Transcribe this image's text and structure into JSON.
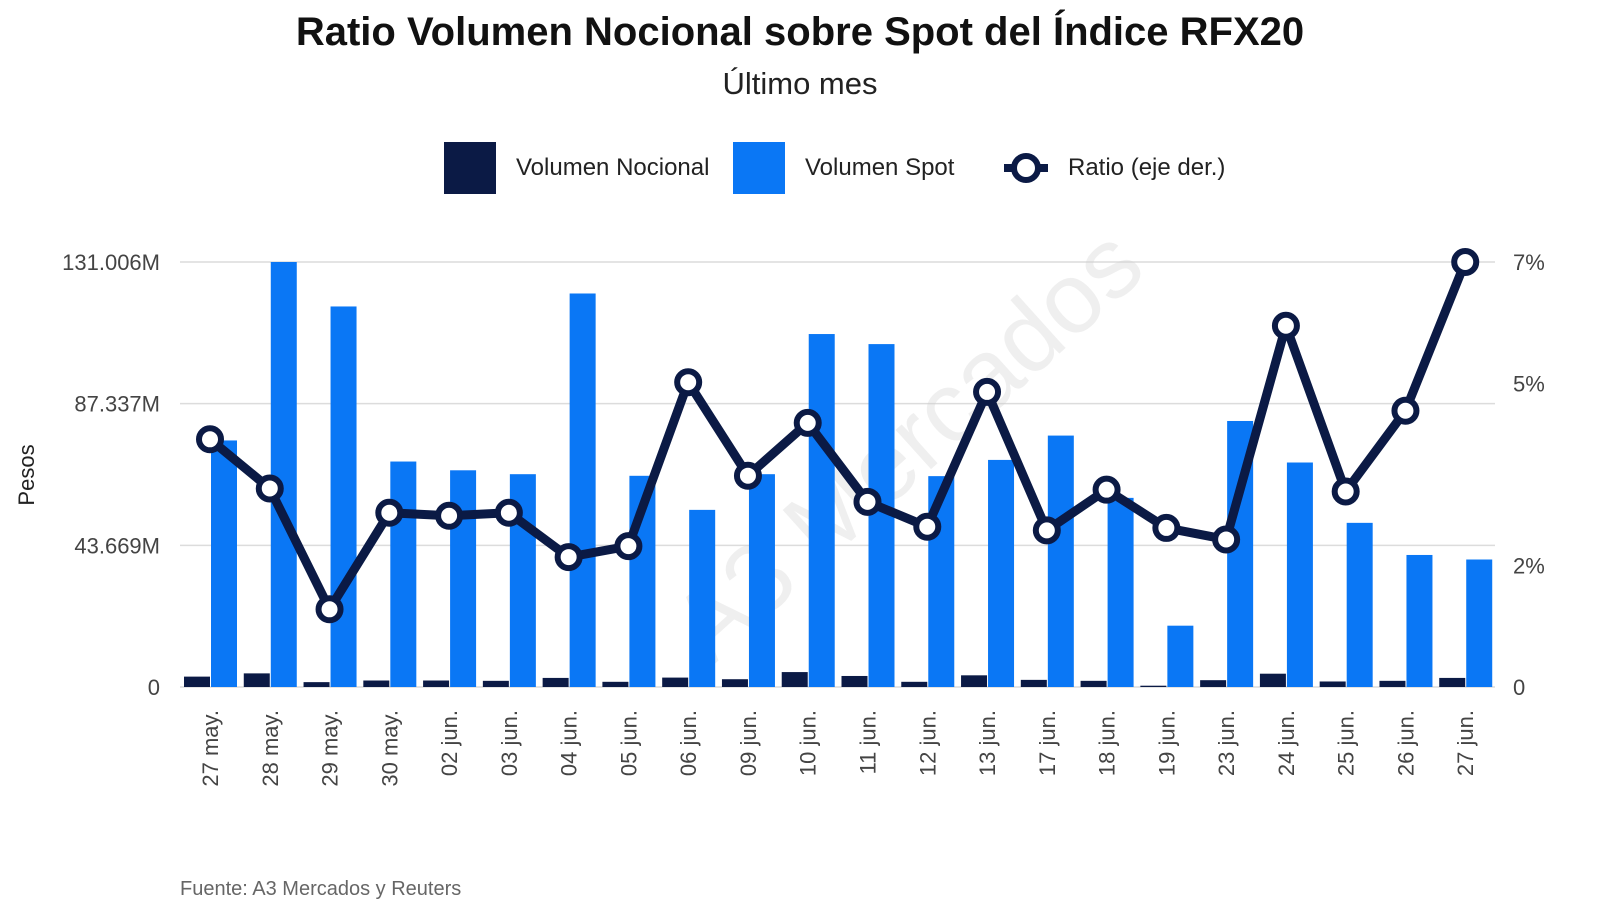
{
  "chart_data": {
    "type": "bar",
    "title": "Ratio Volumen Nocional sobre Spot del Índice RFX20",
    "subtitle": "Último mes",
    "ylabel": "Pesos",
    "source": "Fuente: A3 Mercados y Reuters",
    "watermark": "A3 Mercados",
    "categories": [
      "27 may.",
      "28 may.",
      "29 may.",
      "30 may.",
      "02 jun.",
      "03 jun.",
      "04 jun.",
      "05 jun.",
      "06 jun.",
      "09 jun.",
      "10 jun.",
      "11 jun.",
      "12 jun.",
      "13 jun.",
      "17 jun.",
      "18 jun.",
      "19 jun.",
      "23 jun.",
      "24 jun.",
      "25 jun.",
      "26 jun.",
      "27 jun."
    ],
    "y_left": {
      "ticks": [
        0,
        43669,
        87337,
        131006
      ],
      "tick_labels": [
        "0",
        "43.669M",
        "87.337M",
        "131.006M"
      ],
      "unit": "M",
      "range": [
        0,
        131006
      ]
    },
    "y_right": {
      "ticks": [
        0,
        2,
        5,
        7
      ],
      "tick_labels": [
        "0",
        "2%",
        "5%",
        "7%"
      ],
      "unit": "%",
      "range": [
        0,
        7
      ]
    },
    "series": [
      {
        "name": "Volumen Nocional",
        "type": "bar",
        "axis": "left",
        "color": "#0b1a45",
        "values": [
          3200,
          4200,
          1500,
          2000,
          2000,
          1900,
          2800,
          1600,
          2900,
          2400,
          4600,
          3400,
          1600,
          3600,
          2200,
          1900,
          400,
          2100,
          4100,
          1700,
          1900,
          2800
        ]
      },
      {
        "name": "Volumen Spot",
        "type": "bar",
        "axis": "left",
        "color": "#0a77f5",
        "values": [
          76000,
          131006,
          117300,
          69500,
          66800,
          65600,
          121300,
          65100,
          54600,
          65600,
          108800,
          105700,
          65000,
          70000,
          77500,
          58300,
          18900,
          82000,
          69200,
          50600,
          40700,
          39300
        ]
      },
      {
        "name": "Ratio (eje der.)",
        "type": "line",
        "axis": "right",
        "color": "#0b1a45",
        "values": [
          4.08,
          3.27,
          1.28,
          2.87,
          2.82,
          2.87,
          2.14,
          2.32,
          5.02,
          3.48,
          4.35,
          3.05,
          2.64,
          4.86,
          2.58,
          3.25,
          2.62,
          2.43,
          5.95,
          3.22,
          4.55,
          7.0
        ]
      }
    ],
    "legend_position": "top",
    "grid": true
  }
}
